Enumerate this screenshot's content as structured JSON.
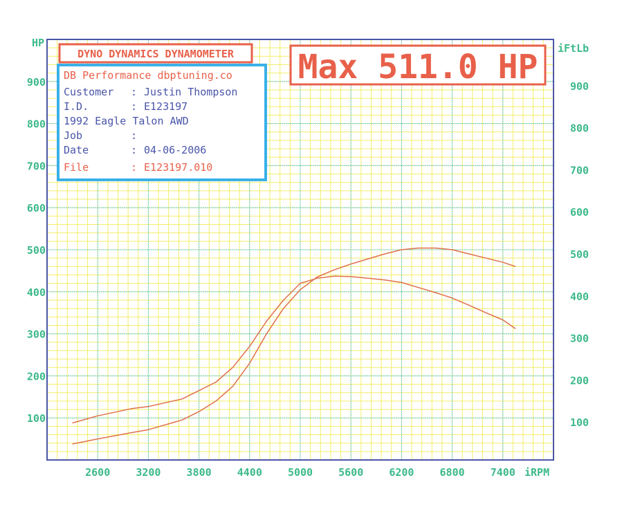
{
  "chart_data": {
    "type": "line",
    "title": "DYNO DYNAMICS DYNAMOMETER",
    "annotation": "Max 511.0 HP",
    "xlabel": "iRPM",
    "ylabel": "HP",
    "ylabel_right": "iFtLb",
    "xlim": [
      2000,
      8000
    ],
    "ylim": [
      0,
      1000
    ],
    "x_ticks": [
      "2600",
      "3200",
      "3800",
      "4400",
      "5000",
      "5600",
      "6200",
      "6800",
      "7400"
    ],
    "y_ticks": [
      "100",
      "200",
      "300",
      "400",
      "500",
      "600",
      "700",
      "800",
      "900"
    ],
    "grid": true,
    "colors": {
      "curve": "#e0704a",
      "grid_major": "#5ec8e0",
      "grid_minor": "#f2ee6a",
      "frame": "#4a55a8",
      "tick": "#3cb98a",
      "box_red": "#e8604a",
      "box_blue": "#3ab0e8"
    },
    "series": [
      {
        "x": [
          2300,
          2600,
          3000,
          3200,
          3600,
          3800,
          4000,
          4200,
          4400,
          4600,
          4800,
          5000,
          5200,
          5400,
          5600,
          5800,
          6000,
          6200,
          6400,
          6600,
          6800,
          7000,
          7200,
          7400,
          7550
        ],
        "y": [
          38,
          50,
          65,
          72,
          95,
          115,
          140,
          175,
          230,
          300,
          360,
          405,
          435,
          452,
          466,
          478,
          490,
          500,
          504,
          504,
          500,
          490,
          480,
          470,
          460
        ]
      },
      {
        "x": [
          2300,
          2600,
          3000,
          3200,
          3600,
          3800,
          4000,
          4200,
          4400,
          4600,
          4800,
          5000,
          5200,
          5400,
          5600,
          5800,
          6000,
          6200,
          6400,
          6600,
          6800,
          7000,
          7200,
          7400,
          7550
        ],
        "y": [
          88,
          105,
          122,
          127,
          145,
          165,
          185,
          220,
          270,
          330,
          380,
          420,
          432,
          437,
          436,
          432,
          428,
          422,
          410,
          398,
          385,
          368,
          350,
          333,
          312
        ]
      }
    ]
  },
  "info": {
    "company": "DB Performance dbptuning.co",
    "customer_label": "Customer",
    "customer": "Justin Thompson",
    "id_label": "I.D.",
    "id": "E123197",
    "vehicle": "1992 Eagle Talon AWD",
    "job_label": "Job",
    "job": "",
    "date_label": "Date",
    "date": "04-06-2006",
    "file_label": "File",
    "file": "E123197.010",
    "sep": ":"
  }
}
